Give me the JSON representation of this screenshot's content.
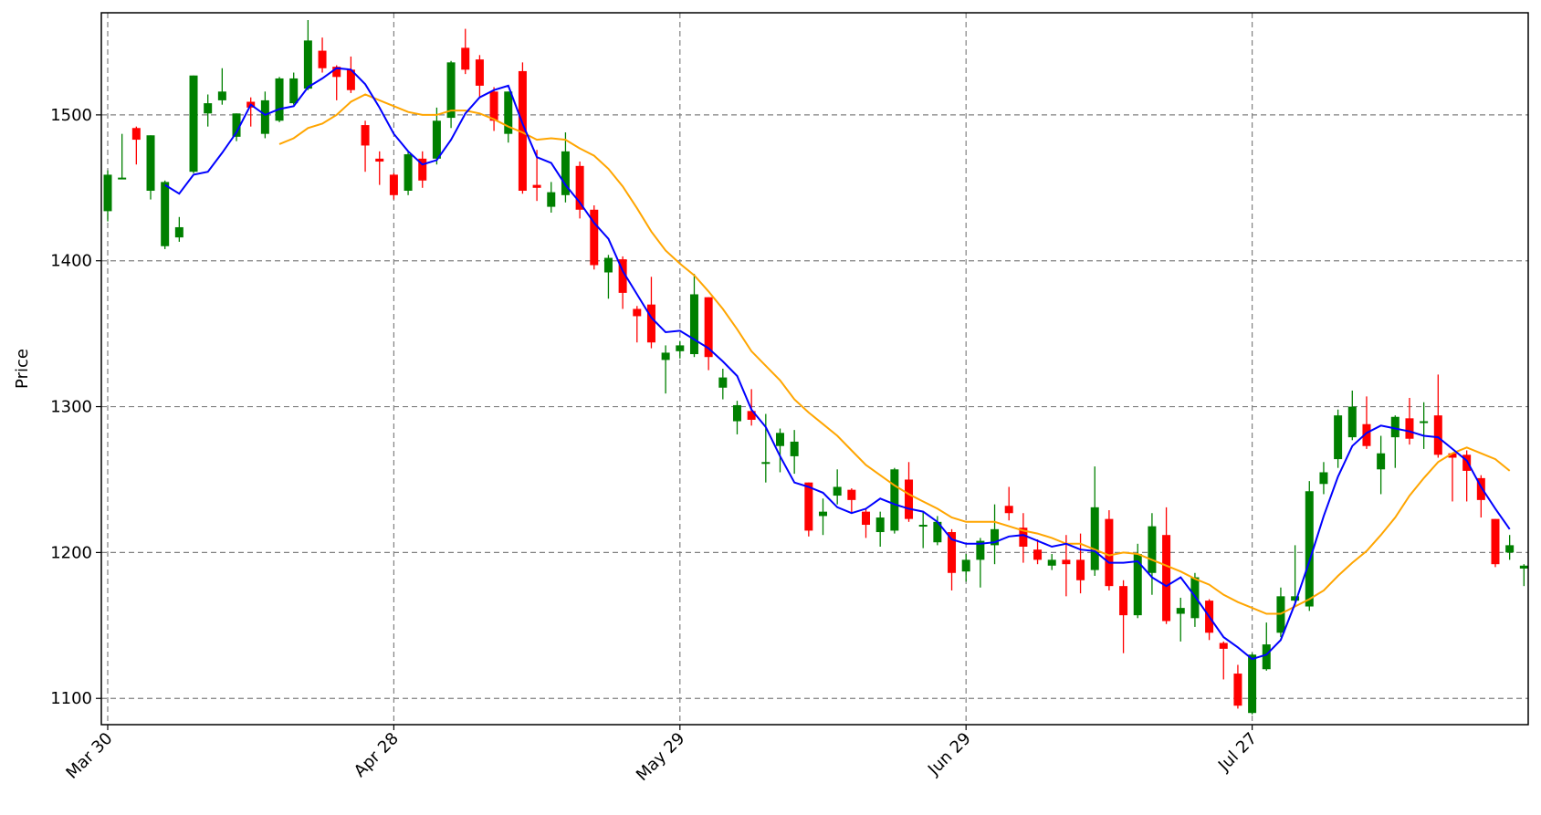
{
  "chart_data": {
    "type": "candlestick",
    "ylabel": "Price",
    "xlabel": "",
    "ylim": [
      1082,
      1570
    ],
    "x_ticks": [
      {
        "label": "Mar 30",
        "index": 0
      },
      {
        "label": "Apr 28",
        "index": 20
      },
      {
        "label": "May 29",
        "index": 40
      },
      {
        "label": "Jun 29",
        "index": 60
      },
      {
        "label": "Jul 27",
        "index": 80
      }
    ],
    "y_ticks": [
      1100,
      1200,
      1300,
      1400,
      1500
    ],
    "grid": true,
    "colors": {
      "up": "#008000",
      "down": "#ff0000",
      "ma_short": "#0000ff",
      "ma_long": "#ffa500"
    },
    "candles": [
      [
        1434,
        1459,
        1462,
        1427
      ],
      [
        1457,
        1457,
        1487,
        1456
      ],
      [
        1491,
        1483,
        1492,
        1466
      ],
      [
        1448,
        1486,
        1486,
        1442
      ],
      [
        1410,
        1454,
        1455,
        1408
      ],
      [
        1416,
        1423,
        1430,
        1413
      ],
      [
        1461,
        1527,
        1527,
        1460
      ],
      [
        1501,
        1508,
        1514,
        1492
      ],
      [
        1510,
        1516,
        1532,
        1507
      ],
      [
        1485,
        1501,
        1501,
        1482
      ],
      [
        1509,
        1505,
        1512,
        1492
      ],
      [
        1487,
        1510,
        1516,
        1484
      ],
      [
        1496,
        1525,
        1526,
        1495
      ],
      [
        1508,
        1525,
        1529,
        1507
      ],
      [
        1518,
        1551,
        1565,
        1517
      ],
      [
        1544,
        1532,
        1553,
        1529
      ],
      [
        1533,
        1526,
        1534,
        1510
      ],
      [
        1531,
        1517,
        1540,
        1515
      ],
      [
        1493,
        1479,
        1496,
        1461
      ],
      [
        1470,
        1468,
        1475,
        1452
      ],
      [
        1459,
        1445,
        1460,
        1442
      ],
      [
        1448,
        1473,
        1475,
        1445
      ],
      [
        1470,
        1455,
        1475,
        1450
      ],
      [
        1470,
        1496,
        1505,
        1466
      ],
      [
        1498,
        1536,
        1537,
        1491
      ],
      [
        1546,
        1531,
        1559,
        1528
      ],
      [
        1538,
        1520,
        1541,
        1512
      ],
      [
        1516,
        1496,
        1519,
        1489
      ],
      [
        1487,
        1516,
        1516,
        1481
      ],
      [
        1530,
        1448,
        1536,
        1446
      ],
      [
        1452,
        1450,
        1476,
        1441
      ],
      [
        1437,
        1447,
        1454,
        1433
      ],
      [
        1445,
        1475,
        1488,
        1440
      ],
      [
        1465,
        1435,
        1468,
        1429
      ],
      [
        1435,
        1397,
        1438,
        1394
      ],
      [
        1392,
        1402,
        1404,
        1374
      ],
      [
        1401,
        1378,
        1403,
        1367
      ],
      [
        1367,
        1362,
        1369,
        1344
      ],
      [
        1370,
        1344,
        1389,
        1340
      ],
      [
        1332,
        1337,
        1342,
        1309
      ],
      [
        1338,
        1342,
        1345,
        1333
      ],
      [
        1336,
        1377,
        1391,
        1334
      ],
      [
        1375,
        1334,
        1375,
        1325
      ],
      [
        1313,
        1320,
        1326,
        1305
      ],
      [
        1290,
        1301,
        1304,
        1281
      ],
      [
        1297,
        1291,
        1312,
        1287
      ],
      [
        1262,
        1262,
        1295,
        1248
      ],
      [
        1273,
        1282,
        1285,
        1255
      ],
      [
        1266,
        1276,
        1284,
        1254
      ],
      [
        1248,
        1215,
        1248,
        1211
      ],
      [
        1225,
        1228,
        1237,
        1212
      ],
      [
        1239,
        1245,
        1257,
        1233
      ],
      [
        1243,
        1236,
        1244,
        1227
      ],
      [
        1228,
        1219,
        1230,
        1210
      ],
      [
        1214,
        1224,
        1228,
        1204
      ],
      [
        1215,
        1257,
        1258,
        1213
      ],
      [
        1250,
        1223,
        1262,
        1221
      ],
      [
        1219,
        1219,
        1228,
        1203
      ],
      [
        1207,
        1221,
        1225,
        1205
      ],
      [
        1214,
        1186,
        1216,
        1174
      ],
      [
        1187,
        1195,
        1199,
        1180
      ],
      [
        1195,
        1208,
        1210,
        1176
      ],
      [
        1205,
        1216,
        1233,
        1192
      ],
      [
        1232,
        1227,
        1245,
        1222
      ],
      [
        1217,
        1204,
        1227,
        1193
      ],
      [
        1202,
        1195,
        1209,
        1192
      ],
      [
        1191,
        1195,
        1199,
        1188
      ],
      [
        1195,
        1192,
        1212,
        1170
      ],
      [
        1195,
        1181,
        1213,
        1172
      ],
      [
        1188,
        1231,
        1259,
        1184
      ],
      [
        1223,
        1177,
        1229,
        1174
      ],
      [
        1177,
        1157,
        1181,
        1131
      ],
      [
        1157,
        1199,
        1206,
        1155
      ],
      [
        1186,
        1218,
        1227,
        1171
      ],
      [
        1212,
        1153,
        1231,
        1151
      ],
      [
        1158,
        1162,
        1169,
        1139
      ],
      [
        1155,
        1183,
        1186,
        1149
      ],
      [
        1167,
        1145,
        1168,
        1140
      ],
      [
        1138,
        1134,
        1139,
        1113
      ],
      [
        1117,
        1095,
        1123,
        1093
      ],
      [
        1090,
        1130,
        1131,
        1089
      ],
      [
        1120,
        1137,
        1152,
        1119
      ],
      [
        1145,
        1170,
        1176,
        1142
      ],
      [
        1167,
        1170,
        1205,
        1164
      ],
      [
        1163,
        1242,
        1249,
        1160
      ],
      [
        1247,
        1255,
        1262,
        1240
      ],
      [
        1264,
        1294,
        1298,
        1258
      ],
      [
        1279,
        1300,
        1311,
        1277
      ],
      [
        1288,
        1273,
        1307,
        1271
      ],
      [
        1257,
        1268,
        1280,
        1240
      ],
      [
        1279,
        1293,
        1294,
        1258
      ],
      [
        1292,
        1278,
        1306,
        1274
      ],
      [
        1290,
        1290,
        1303,
        1271
      ],
      [
        1294,
        1267,
        1322,
        1265
      ],
      [
        1268,
        1265,
        1268,
        1235
      ],
      [
        1267,
        1256,
        1270,
        1235
      ],
      [
        1251,
        1236,
        1253,
        1224
      ],
      [
        1223,
        1192,
        1223,
        1190
      ],
      [
        1200,
        1205,
        1212,
        1195
      ],
      [
        1189,
        1191,
        1192,
        1177
      ]
    ],
    "ma_short": [
      null,
      null,
      null,
      null,
      1452,
      1446,
      1459,
      1461,
      1474,
      1488,
      1507,
      1500,
      1504,
      1506,
      1519,
      1525,
      1532,
      1531,
      1521,
      1505,
      1487,
      1475,
      1466,
      1469,
      1483,
      1501,
      1512,
      1517,
      1520,
      1494,
      1471,
      1467,
      1452,
      1440,
      1426,
      1415,
      1393,
      1377,
      1361,
      1351,
      1352,
      1346,
      1340,
      1331,
      1321,
      1298,
      1286,
      1266,
      1248,
      1245,
      1241,
      1231,
      1227,
      1230,
      1237,
      1233,
      1230,
      1228,
      1221,
      1209,
      1206,
      1206,
      1207,
      1211,
      1212,
      1208,
      1204,
      1206,
      1202,
      1201,
      1193,
      1193,
      1194,
      1183,
      1177,
      1183,
      1170,
      1156,
      1142,
      1135,
      1127,
      1130,
      1140,
      1165,
      1194,
      1225,
      1252,
      1273,
      1282,
      1287,
      1285,
      1283,
      1280,
      1279,
      1271,
      1263,
      1245,
      1230,
      1216
    ],
    "ma_long": [
      null,
      null,
      null,
      null,
      null,
      null,
      null,
      null,
      null,
      null,
      null,
      null,
      1480,
      1484,
      1491,
      1494,
      1500,
      1509,
      1514,
      1510,
      1506,
      1502,
      1500,
      1500,
      1503,
      1503,
      1501,
      1497,
      1492,
      1488,
      1483,
      1484,
      1483,
      1477,
      1472,
      1463,
      1451,
      1436,
      1420,
      1407,
      1398,
      1390,
      1379,
      1367,
      1353,
      1338,
      1328,
      1318,
      1305,
      1296,
      1288,
      1280,
      1270,
      1260,
      1253,
      1246,
      1240,
      1235,
      1230,
      1224,
      1221,
      1221,
      1221,
      1218,
      1215,
      1213,
      1210,
      1206,
      1206,
      1202,
      1198,
      1200,
      1199,
      1195,
      1191,
      1187,
      1182,
      1178,
      1171,
      1166,
      1162,
      1158,
      1158,
      1163,
      1168,
      1174,
      1184,
      1193,
      1201,
      1212,
      1224,
      1239,
      1251,
      1262,
      1268,
      1272,
      1268,
      1264,
      1256
    ]
  }
}
